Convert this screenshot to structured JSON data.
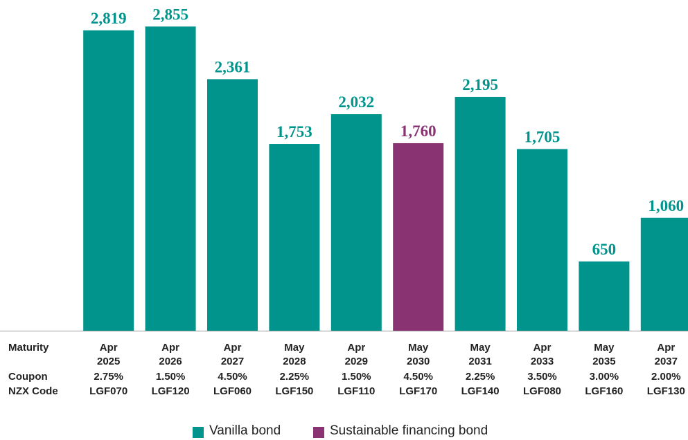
{
  "chart_data": {
    "type": "bar",
    "row_labels": [
      "Maturity",
      "Coupon",
      "NZX Code"
    ],
    "categories": [
      "Apr 2025",
      "Apr 2026",
      "Apr 2027",
      "May 2028",
      "Apr 2029",
      "May 2030",
      "May 2031",
      "Apr 2033",
      "May 2035",
      "Apr 2037"
    ],
    "coupons": [
      "2.75%",
      "1.50%",
      "4.50%",
      "2.25%",
      "1.50%",
      "4.50%",
      "2.25%",
      "3.50%",
      "3.00%",
      "2.00%"
    ],
    "codes": [
      "LGF070",
      "LGF120",
      "LGF060",
      "LGF150",
      "LGF110",
      "LGF170",
      "LGF140",
      "LGF080",
      "LGF160",
      "LGF130"
    ],
    "series": [
      {
        "name": "Vanilla bond",
        "color": "#00948c",
        "values": [
          2819,
          2855,
          2361,
          1753,
          2032,
          null,
          2195,
          1705,
          650,
          1060
        ],
        "value_labels": [
          "2,819",
          "2,855",
          "2,361",
          "1,753",
          "2,032",
          null,
          "2,195",
          "1,705",
          "650",
          "1,060"
        ]
      },
      {
        "name": "Sustainable financing bond",
        "color": "#8a3373",
        "values": [
          null,
          null,
          null,
          null,
          null,
          1760,
          null,
          null,
          null,
          null
        ],
        "value_labels": [
          null,
          null,
          null,
          null,
          null,
          "1,760",
          null,
          null,
          null,
          null
        ]
      }
    ],
    "ylim": [
      0,
      3000
    ]
  }
}
